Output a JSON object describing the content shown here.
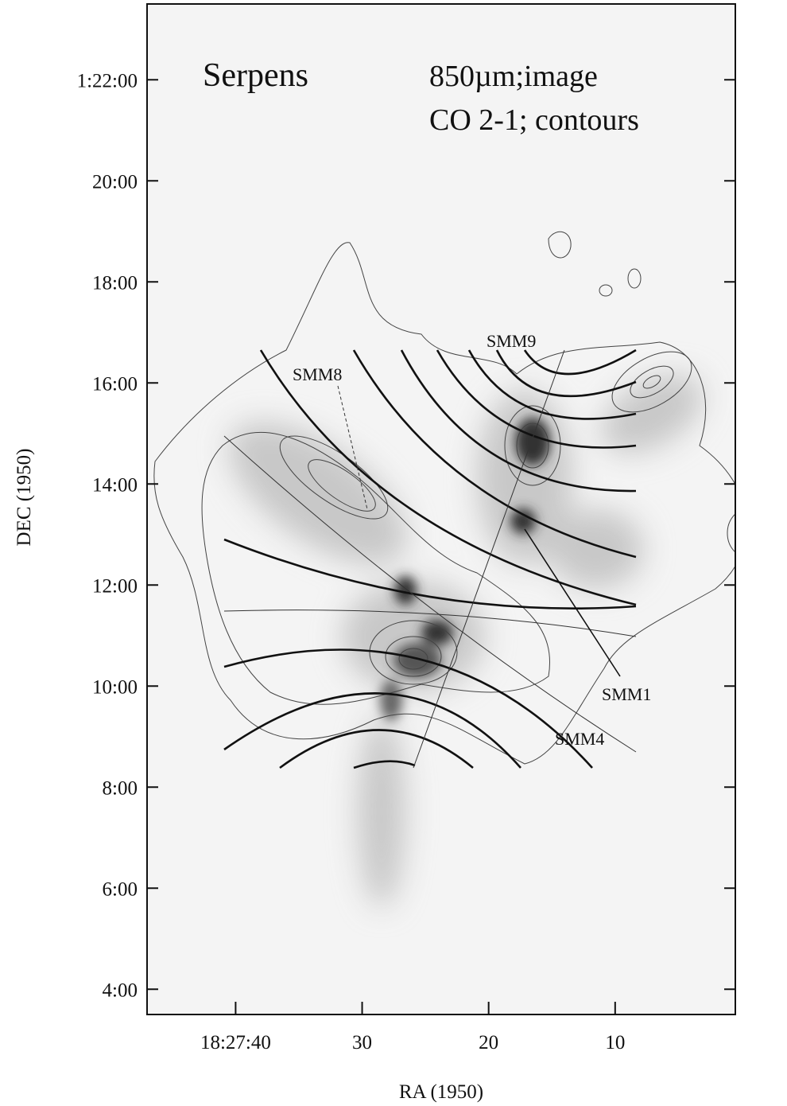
{
  "chart_data": {
    "type": "image",
    "title": "Serpens",
    "subtitle": [
      "850µm;image",
      "CO 2-1; contours"
    ],
    "xlabel": "RA (1950)",
    "ylabel": "DEC (1950)",
    "annotations": [
      "SMM8",
      "SMM9",
      "SMM1",
      "SMM4"
    ],
    "xlim": [
      47,
      0.5
    ],
    "xticks": [
      {
        "value": 40,
        "label": "18:27:40"
      },
      30,
      20,
      10
    ],
    "ylim": [
      63.5,
      83.5
    ],
    "yticks": [
      {
        "value": 82,
        "label": "1:22:00"
      },
      {
        "value": 80,
        "label": "20:00"
      },
      {
        "value": 78,
        "label": "18:00"
      },
      {
        "value": 76,
        "label": "16:00"
      },
      {
        "value": 74,
        "label": "14:00"
      },
      {
        "value": 72,
        "label": "12:00"
      },
      {
        "value": 70,
        "label": "10:00"
      },
      {
        "value": 68,
        "label": "8:00"
      },
      {
        "value": 66,
        "label": "6:00"
      },
      {
        "value": 64,
        "label": "4:00"
      }
    ]
  }
}
